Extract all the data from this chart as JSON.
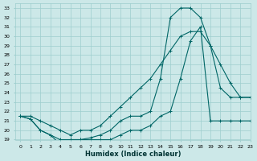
{
  "xlabel": "Humidex (Indice chaleur)",
  "x_ticks": [
    0,
    1,
    2,
    3,
    4,
    5,
    6,
    7,
    8,
    9,
    10,
    11,
    12,
    13,
    14,
    15,
    16,
    17,
    18,
    19,
    20,
    21,
    22,
    23
  ],
  "x_tick_labels": [
    "0",
    "1",
    "2",
    "3",
    "4",
    "5",
    "6",
    "7",
    "8",
    "9",
    "10",
    "11",
    "12",
    "13",
    "14",
    "15",
    "16",
    "17",
    "18",
    "19",
    "20",
    "21",
    "22",
    "23"
  ],
  "ylim": [
    19,
    33.5
  ],
  "xlim": [
    -0.5,
    23
  ],
  "y_ticks": [
    19,
    20,
    21,
    22,
    23,
    24,
    25,
    26,
    27,
    28,
    29,
    30,
    31,
    32,
    33
  ],
  "y_tick_labels": [
    "19",
    "20",
    "21",
    "22",
    "23",
    "24",
    "25",
    "26",
    "27",
    "28",
    "29",
    "30",
    "31",
    "32",
    "33"
  ],
  "bg_color": "#cce8e8",
  "grid_color": "#9ecece",
  "line_color": "#006666",
  "series1_x": [
    0,
    1,
    2,
    3,
    4,
    5,
    6,
    7,
    8,
    9,
    10,
    11,
    12,
    13,
    14,
    15,
    16,
    17,
    18,
    19,
    20,
    21,
    22,
    23
  ],
  "series1_y": [
    21.5,
    21.2,
    20.0,
    19.5,
    19.0,
    19.0,
    19.0,
    19.2,
    19.5,
    20.0,
    21.0,
    21.5,
    21.5,
    22.0,
    25.5,
    32.0,
    33.0,
    33.0,
    32.0,
    29.0,
    24.5,
    23.5,
    23.5,
    23.5
  ],
  "series2_x": [
    0,
    1,
    2,
    3,
    4,
    5,
    6,
    7,
    8,
    9,
    10,
    11,
    12,
    13,
    14,
    15,
    16,
    17,
    18,
    19,
    20,
    21,
    22,
    23
  ],
  "series2_y": [
    21.5,
    21.2,
    20.0,
    19.5,
    18.5,
    19.0,
    19.0,
    19.0,
    19.0,
    19.0,
    19.5,
    20.0,
    20.0,
    20.5,
    21.5,
    22.0,
    25.5,
    29.5,
    31.0,
    21.0,
    21.0,
    21.0,
    21.0,
    21.0
  ],
  "series3_x": [
    0,
    1,
    2,
    3,
    4,
    5,
    6,
    7,
    8,
    9,
    10,
    11,
    12,
    13,
    14,
    15,
    16,
    17,
    18,
    19,
    20,
    21,
    22,
    23
  ],
  "series3_y": [
    21.5,
    21.5,
    21.0,
    20.5,
    20.0,
    19.5,
    20.0,
    20.0,
    20.5,
    21.5,
    22.5,
    23.5,
    24.5,
    25.5,
    27.0,
    28.5,
    30.0,
    30.5,
    30.5,
    29.0,
    27.0,
    25.0,
    23.5,
    23.5
  ]
}
